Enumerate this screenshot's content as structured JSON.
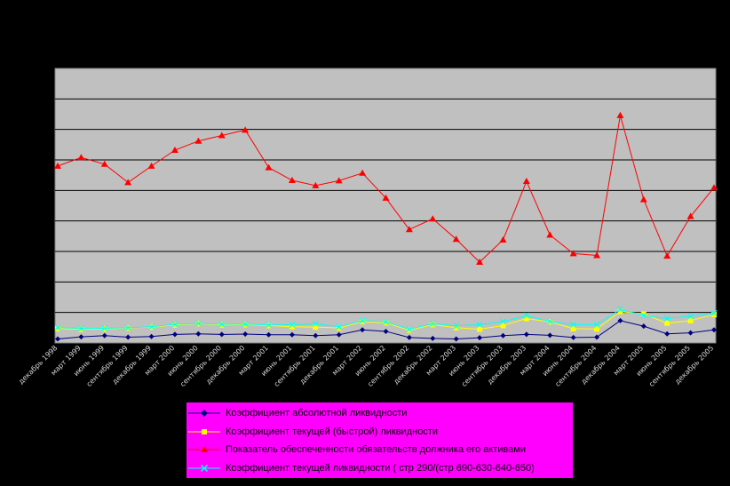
{
  "chart_data": {
    "type": "line",
    "title": "",
    "xlabel": "",
    "ylabel": "",
    "ylim": [
      0,
      9
    ],
    "grid": true,
    "legend_placement": "bottom",
    "plot_background": "#c0c0c0",
    "categories": [
      "декабрь 1998",
      "март 1999",
      "июнь 1999",
      "сентябрь 1999",
      "декабрь 1999",
      "март 2000",
      "июнь 2000",
      "сентябрь 2000",
      "декабрь 2000",
      "март 2001",
      "июнь 2001",
      "сентябрь 2001",
      "декабрь 2001",
      "март 2002",
      "июнь 2002",
      "сентябрь 2002",
      "декабрь 2002",
      "март 2003",
      "июнь 2003",
      "сентябрь 2003",
      "декабрь 2003",
      "март 2004",
      "июнь 2004",
      "сентябрь 2004",
      "декабрь 2004",
      "март 2005",
      "июнь 2005",
      "сентябрь 2005",
      "декабрь 2005"
    ],
    "series": [
      {
        "name": "Коэффициент абсолютной ликвидности",
        "color": "#00007f",
        "marker": "diamond",
        "values": [
          0.13,
          0.2,
          0.24,
          0.19,
          0.21,
          0.28,
          0.3,
          0.28,
          0.29,
          0.27,
          0.27,
          0.24,
          0.27,
          0.43,
          0.38,
          0.18,
          0.15,
          0.13,
          0.17,
          0.24,
          0.28,
          0.25,
          0.18,
          0.19,
          0.73,
          0.55,
          0.3,
          0.33,
          0.43
        ]
      },
      {
        "name": "Коэффициент текущей (быстрой) ликвидности",
        "color": "#ffff00",
        "marker": "square",
        "values": [
          0.47,
          0.45,
          0.46,
          0.49,
          0.52,
          0.59,
          0.63,
          0.59,
          0.6,
          0.57,
          0.53,
          0.52,
          0.49,
          0.7,
          0.66,
          0.42,
          0.6,
          0.5,
          0.45,
          0.57,
          0.8,
          0.69,
          0.47,
          0.46,
          1.03,
          0.95,
          0.65,
          0.73,
          0.93
        ]
      },
      {
        "name": "Показатель обеспеченности обязательств должника его активами",
        "color": "#ff0000",
        "marker": "triangle",
        "values": [
          5.8,
          6.08,
          5.86,
          5.26,
          5.8,
          6.32,
          6.62,
          6.8,
          6.98,
          5.75,
          5.33,
          5.16,
          5.32,
          5.57,
          4.75,
          3.72,
          4.07,
          3.4,
          2.65,
          3.38,
          5.3,
          3.54,
          2.93,
          2.87,
          7.46,
          4.7,
          2.85,
          4.15,
          5.09
        ]
      },
      {
        "name": "Коэффициент текущей ликвидности ( стр 290/(стр 690-630-640-650)",
        "color": "#00ffff",
        "marker": "x",
        "values": [
          0.5,
          0.48,
          0.48,
          0.5,
          0.53,
          0.61,
          0.64,
          0.61,
          0.62,
          0.59,
          0.6,
          0.63,
          0.53,
          0.73,
          0.69,
          0.45,
          0.63,
          0.56,
          0.6,
          0.7,
          0.9,
          0.7,
          0.6,
          0.6,
          1.1,
          0.9,
          0.8,
          0.88,
          0.98
        ]
      }
    ]
  }
}
